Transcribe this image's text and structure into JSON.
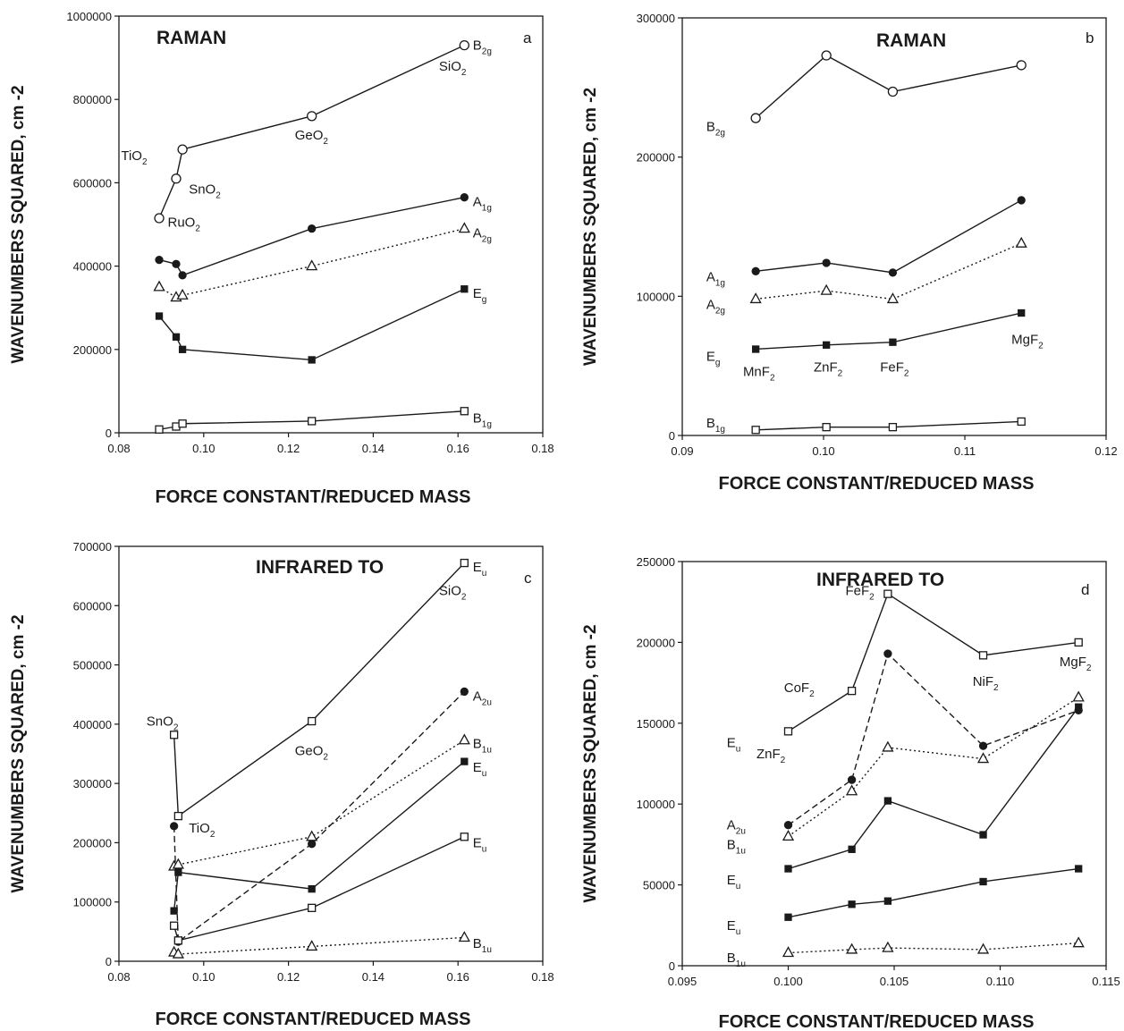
{
  "chart_data": [
    {
      "panel": "a",
      "type": "line",
      "title": "RAMAN",
      "xlabel": "FORCE CONSTANT/REDUCED MASS",
      "ylabel": "WAVENUMBERS SQUARED, cm -2",
      "xlim": [
        0.08,
        0.18
      ],
      "ylim": [
        0,
        1000000
      ],
      "xticks": [
        0.08,
        0.1,
        0.12,
        0.14,
        0.16,
        0.18
      ],
      "xtick_labels": [
        "0.08",
        "0.10",
        "0.12",
        "0.14",
        "0.16",
        "0.18"
      ],
      "yticks": [
        0,
        200000,
        400000,
        600000,
        800000,
        1000000
      ],
      "ytick_labels": [
        "0",
        "200000",
        "400000",
        "600000",
        "800000",
        "1000000"
      ],
      "grid": false,
      "series": [
        {
          "name": "B2g",
          "marker": "open-circle",
          "line": "solid",
          "x": [
            0.0895,
            0.0935,
            0.095,
            0.1255,
            0.1615
          ],
          "y": [
            515000,
            610000,
            680000,
            760000,
            930000
          ]
        },
        {
          "name": "A1g",
          "marker": "filled-circle",
          "line": "solid",
          "x": [
            0.0895,
            0.0935,
            0.095,
            0.1255,
            0.1615
          ],
          "y": [
            415000,
            405000,
            378000,
            490000,
            565000
          ]
        },
        {
          "name": "A2g",
          "marker": "open-triangle",
          "line": "dotted",
          "x": [
            0.0895,
            0.0935,
            0.095,
            0.1255,
            0.1615
          ],
          "y": [
            350000,
            325000,
            330000,
            400000,
            490000
          ]
        },
        {
          "name": "Eg",
          "marker": "filled-square",
          "line": "solid",
          "x": [
            0.0895,
            0.0935,
            0.095,
            0.1255,
            0.1615
          ],
          "y": [
            280000,
            230000,
            200000,
            175000,
            345000
          ]
        },
        {
          "name": "B1g",
          "marker": "open-square",
          "line": "solid",
          "x": [
            0.0895,
            0.0935,
            0.095,
            0.1255,
            0.1615
          ],
          "y": [
            8000,
            15000,
            22000,
            28000,
            52000
          ]
        }
      ],
      "annotations": [
        {
          "text": "B",
          "sub": "2g",
          "x": 0.1635,
          "y": 930000
        },
        {
          "text": "SiO",
          "sub": "2",
          "x": 0.1555,
          "y": 880000
        },
        {
          "text": "GeO",
          "sub": "2",
          "x": 0.1215,
          "y": 715000
        },
        {
          "text": "TiO",
          "sub": "2",
          "x": 0.0805,
          "y": 665000
        },
        {
          "text": "SnO",
          "sub": "2",
          "x": 0.0965,
          "y": 585000
        },
        {
          "text": "RuO",
          "sub": "2",
          "x": 0.0915,
          "y": 505000
        },
        {
          "text": "A",
          "sub": "1g",
          "x": 0.1635,
          "y": 555000
        },
        {
          "text": "A",
          "sub": "2g",
          "x": 0.1635,
          "y": 480000
        },
        {
          "text": "E",
          "sub": "g",
          "x": 0.1635,
          "y": 335000
        },
        {
          "text": "B",
          "sub": "1g",
          "x": 0.1635,
          "y": 35000
        }
      ]
    },
    {
      "panel": "b",
      "type": "line",
      "title": "RAMAN",
      "xlabel": "FORCE CONSTANT/REDUCED MASS",
      "ylabel": "WAVENUMBERS SQUARED, cm -2",
      "xlim": [
        0.09,
        0.12
      ],
      "ylim": [
        0,
        300000
      ],
      "xticks": [
        0.09,
        0.1,
        0.11,
        0.12
      ],
      "xtick_labels": [
        "0.09",
        "0.10",
        "0.11",
        "0.12"
      ],
      "yticks": [
        0,
        100000,
        200000,
        300000
      ],
      "ytick_labels": [
        "0",
        "100000",
        "200000",
        "300000"
      ],
      "grid": false,
      "series": [
        {
          "name": "B2g",
          "marker": "open-circle",
          "line": "solid",
          "x": [
            0.0952,
            0.1002,
            0.1049,
            0.114
          ],
          "y": [
            228000,
            273000,
            247000,
            266000
          ]
        },
        {
          "name": "A1g",
          "marker": "filled-circle",
          "line": "solid",
          "x": [
            0.0952,
            0.1002,
            0.1049,
            0.114
          ],
          "y": [
            118000,
            124000,
            117000,
            169000
          ]
        },
        {
          "name": "A2g",
          "marker": "open-triangle",
          "line": "dotted",
          "x": [
            0.0952,
            0.1002,
            0.1049,
            0.114
          ],
          "y": [
            98000,
            104000,
            98000,
            138000
          ]
        },
        {
          "name": "Eg",
          "marker": "filled-square",
          "line": "solid",
          "x": [
            0.0952,
            0.1002,
            0.1049,
            0.114
          ],
          "y": [
            62000,
            65000,
            67000,
            88000
          ]
        },
        {
          "name": "B1g",
          "marker": "open-square",
          "line": "solid",
          "x": [
            0.0952,
            0.1002,
            0.1049,
            0.114
          ],
          "y": [
            4000,
            6000,
            6000,
            10000
          ]
        }
      ],
      "annotations": [
        {
          "text": "B",
          "sub": "2g",
          "x": 0.0917,
          "y": 222000
        },
        {
          "text": "A",
          "sub": "1g",
          "x": 0.0917,
          "y": 114000
        },
        {
          "text": "A",
          "sub": "2g",
          "x": 0.0917,
          "y": 94000
        },
        {
          "text": "E",
          "sub": "g",
          "x": 0.0917,
          "y": 57000
        },
        {
          "text": "B",
          "sub": "1g",
          "x": 0.0917,
          "y": 9000
        },
        {
          "text": "MnF",
          "sub": "2",
          "x": 0.0943,
          "y": 46000
        },
        {
          "text": "ZnF",
          "sub": "2",
          "x": 0.0993,
          "y": 49000
        },
        {
          "text": "FeF",
          "sub": "2",
          "x": 0.104,
          "y": 49000
        },
        {
          "text": "MgF",
          "sub": "2",
          "x": 0.1133,
          "y": 69000
        }
      ]
    },
    {
      "panel": "c",
      "type": "line",
      "title": "INFRARED TO",
      "xlabel": "FORCE CONSTANT/REDUCED MASS",
      "ylabel": "WAVENUMBERS SQUARED, cm -2",
      "xlim": [
        0.08,
        0.18
      ],
      "ylim": [
        0,
        700000
      ],
      "xticks": [
        0.08,
        0.1,
        0.12,
        0.14,
        0.16,
        0.18
      ],
      "xtick_labels": [
        "0.08",
        "0.10",
        "0.12",
        "0.14",
        "0.16",
        "0.18"
      ],
      "yticks": [
        0,
        100000,
        200000,
        300000,
        400000,
        500000,
        600000,
        700000
      ],
      "ytick_labels": [
        "0",
        "100000",
        "200000",
        "300000",
        "400000",
        "500000",
        "600000",
        "700000"
      ],
      "grid": false,
      "series": [
        {
          "name": "Eu",
          "marker": "open-square",
          "line": "solid",
          "x": [
            0.093,
            0.094,
            0.1255,
            0.1615
          ],
          "y": [
            382000,
            245000,
            405000,
            672000
          ]
        },
        {
          "name": "A2u",
          "marker": "filled-circle",
          "line": "dashed",
          "x": [
            0.093,
            0.094,
            0.1255,
            0.1615
          ],
          "y": [
            228000,
            33000,
            198000,
            455000
          ]
        },
        {
          "name": "B1u",
          "marker": "open-triangle",
          "line": "dotted",
          "x": [
            0.093,
            0.094,
            0.1255,
            0.1615
          ],
          "y": [
            160000,
            163000,
            210000,
            373000
          ]
        },
        {
          "name": "Eu",
          "marker": "filled-square",
          "line": "solid",
          "x": [
            0.093,
            0.094,
            0.1255,
            0.1615
          ],
          "y": [
            85000,
            150000,
            122000,
            337000
          ]
        },
        {
          "name": "Eu",
          "marker": "open-square",
          "line": "solid",
          "x": [
            0.093,
            0.094,
            0.1255,
            0.1615
          ],
          "y": [
            60000,
            35000,
            90000,
            210000
          ]
        },
        {
          "name": "B1u",
          "marker": "open-triangle",
          "line": "dotted",
          "x": [
            0.093,
            0.094,
            0.1255,
            0.1615
          ],
          "y": [
            15000,
            12000,
            25000,
            40000
          ]
        }
      ],
      "annotations": [
        {
          "text": "E",
          "sub": "u",
          "x": 0.1635,
          "y": 665000
        },
        {
          "text": "SiO",
          "sub": "2",
          "x": 0.1555,
          "y": 625000
        },
        {
          "text": "SnO",
          "sub": "2",
          "x": 0.0865,
          "y": 405000
        },
        {
          "text": "GeO",
          "sub": "2",
          "x": 0.1215,
          "y": 355000
        },
        {
          "text": "TiO",
          "sub": "2",
          "x": 0.0965,
          "y": 225000
        },
        {
          "text": "A",
          "sub": "2u",
          "x": 0.1635,
          "y": 447000
        },
        {
          "text": "B",
          "sub": "1u",
          "x": 0.1635,
          "y": 367000
        },
        {
          "text": "E",
          "sub": "u",
          "x": 0.1635,
          "y": 327000
        },
        {
          "text": "E",
          "sub": "u",
          "x": 0.1635,
          "y": 200000
        },
        {
          "text": "B",
          "sub": "1u",
          "x": 0.1635,
          "y": 30000
        }
      ]
    },
    {
      "panel": "d",
      "type": "line",
      "title": "INFRARED TO",
      "xlabel": "FORCE CONSTANT/REDUCED MASS",
      "ylabel": "WAVENUMBERS SQUARED, cm -2",
      "xlim": [
        0.095,
        0.115
      ],
      "ylim": [
        0,
        250000
      ],
      "xticks": [
        0.095,
        0.1,
        0.105,
        0.11,
        0.115
      ],
      "xtick_labels": [
        "0.095",
        "0.100",
        "0.105",
        "0.110",
        "0.115"
      ],
      "yticks": [
        0,
        50000,
        100000,
        150000,
        200000,
        250000
      ],
      "ytick_labels": [
        "0",
        "50000",
        "100000",
        "150000",
        "200000",
        "250000"
      ],
      "grid": false,
      "series": [
        {
          "name": "Eu",
          "marker": "open-square",
          "line": "solid",
          "x": [
            0.1,
            0.103,
            0.1047,
            0.1092,
            0.1137
          ],
          "y": [
            145000,
            170000,
            230000,
            192000,
            200000
          ]
        },
        {
          "name": "A2u",
          "marker": "filled-circle",
          "line": "dashed",
          "x": [
            0.1,
            0.103,
            0.1047,
            0.1092,
            0.1137
          ],
          "y": [
            87000,
            115000,
            193000,
            136000,
            158000
          ]
        },
        {
          "name": "B1u",
          "marker": "open-triangle",
          "line": "dotted",
          "x": [
            0.1,
            0.103,
            0.1047,
            0.1092,
            0.1137
          ],
          "y": [
            80000,
            108000,
            135000,
            128000,
            166000
          ]
        },
        {
          "name": "Eu",
          "marker": "filled-square",
          "line": "solid",
          "x": [
            0.1,
            0.103,
            0.1047,
            0.1092,
            0.1137
          ],
          "y": [
            60000,
            72000,
            102000,
            81000,
            160000
          ]
        },
        {
          "name": "Eu",
          "marker": "filled-square",
          "line": "solid",
          "x": [
            0.1,
            0.103,
            0.1047,
            0.1092,
            0.1137
          ],
          "y": [
            30000,
            38000,
            40000,
            52000,
            60000
          ]
        },
        {
          "name": "B1u",
          "marker": "open-triangle",
          "line": "dotted",
          "x": [
            0.1,
            0.103,
            0.1047,
            0.1092,
            0.1137
          ],
          "y": [
            8000,
            10000,
            11000,
            10000,
            14000
          ]
        }
      ],
      "annotations": [
        {
          "text": "FeF",
          "sub": "2",
          "x": 0.1027,
          "y": 232000
        },
        {
          "text": "CoF",
          "sub": "2",
          "x": 0.0998,
          "y": 172000
        },
        {
          "text": "NiF",
          "sub": "2",
          "x": 0.1087,
          "y": 176000
        },
        {
          "text": "MgF",
          "sub": "2",
          "x": 0.1128,
          "y": 188000
        },
        {
          "text": "ZnF",
          "sub": "2",
          "x": 0.0985,
          "y": 131000
        },
        {
          "text": "E",
          "sub": "u",
          "x": 0.0971,
          "y": 138000
        },
        {
          "text": "A",
          "sub": "2u",
          "x": 0.0971,
          "y": 87000
        },
        {
          "text": "B",
          "sub": "1u",
          "x": 0.0971,
          "y": 75000
        },
        {
          "text": "E",
          "sub": "u",
          "x": 0.0971,
          "y": 53000
        },
        {
          "text": "E",
          "sub": "u",
          "x": 0.0971,
          "y": 25000
        },
        {
          "text": "B",
          "sub": "1u",
          "x": 0.0971,
          "y": 5000
        }
      ]
    }
  ]
}
